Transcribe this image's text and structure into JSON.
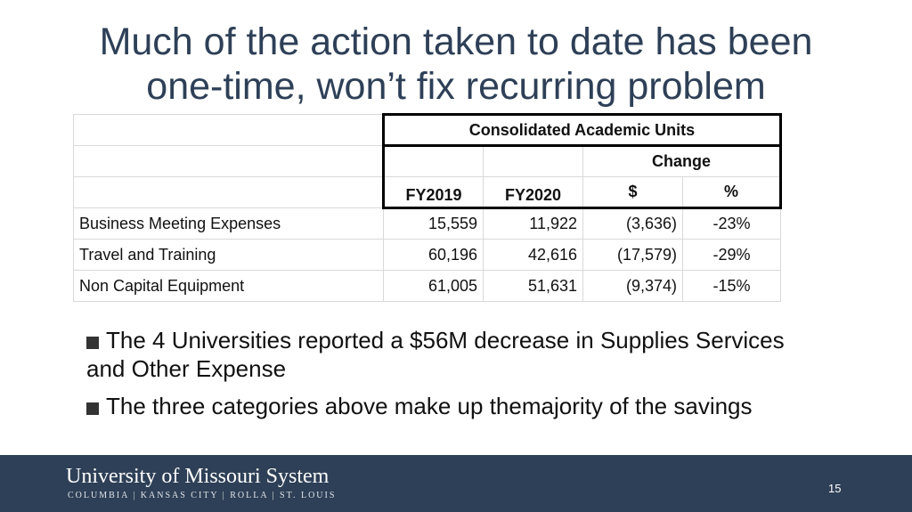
{
  "slide": {
    "title_line1": "Much of the action taken to date has been",
    "title_line2": "one-time, won’t fix recurring problem",
    "page_number": "15"
  },
  "table": {
    "group_header": "Consolidated Academic Units",
    "change_header": "Change",
    "columns": [
      "FY2019",
      "FY2020",
      "$",
      "%"
    ],
    "rows": [
      {
        "label": "Business Meeting Expenses",
        "fy2019": "15,559",
        "fy2020": "11,922",
        "change_dollar": "(3,636)",
        "change_pct": "-23%"
      },
      {
        "label": "Travel and Training",
        "fy2019": "60,196",
        "fy2020": "42,616",
        "change_dollar": "(17,579)",
        "change_pct": "-29%"
      },
      {
        "label": "Non Capital Equipment",
        "fy2019": "61,005",
        "fy2020": "51,631",
        "change_dollar": "(9,374)",
        "change_pct": "-15%"
      }
    ]
  },
  "bullets": [
    "The 4 Universities reported a $56M decrease in Supplies Services and Other Expense",
    "The three categories above make up themajority of the savings"
  ],
  "footer": {
    "logo_title": "University of Missouri System",
    "logo_subtitle": "COLUMBIA | KANSAS CITY | ROLLA | ST. LOUIS"
  },
  "colors": {
    "title": "#2e4057",
    "footer_bg": "#2e4057"
  }
}
